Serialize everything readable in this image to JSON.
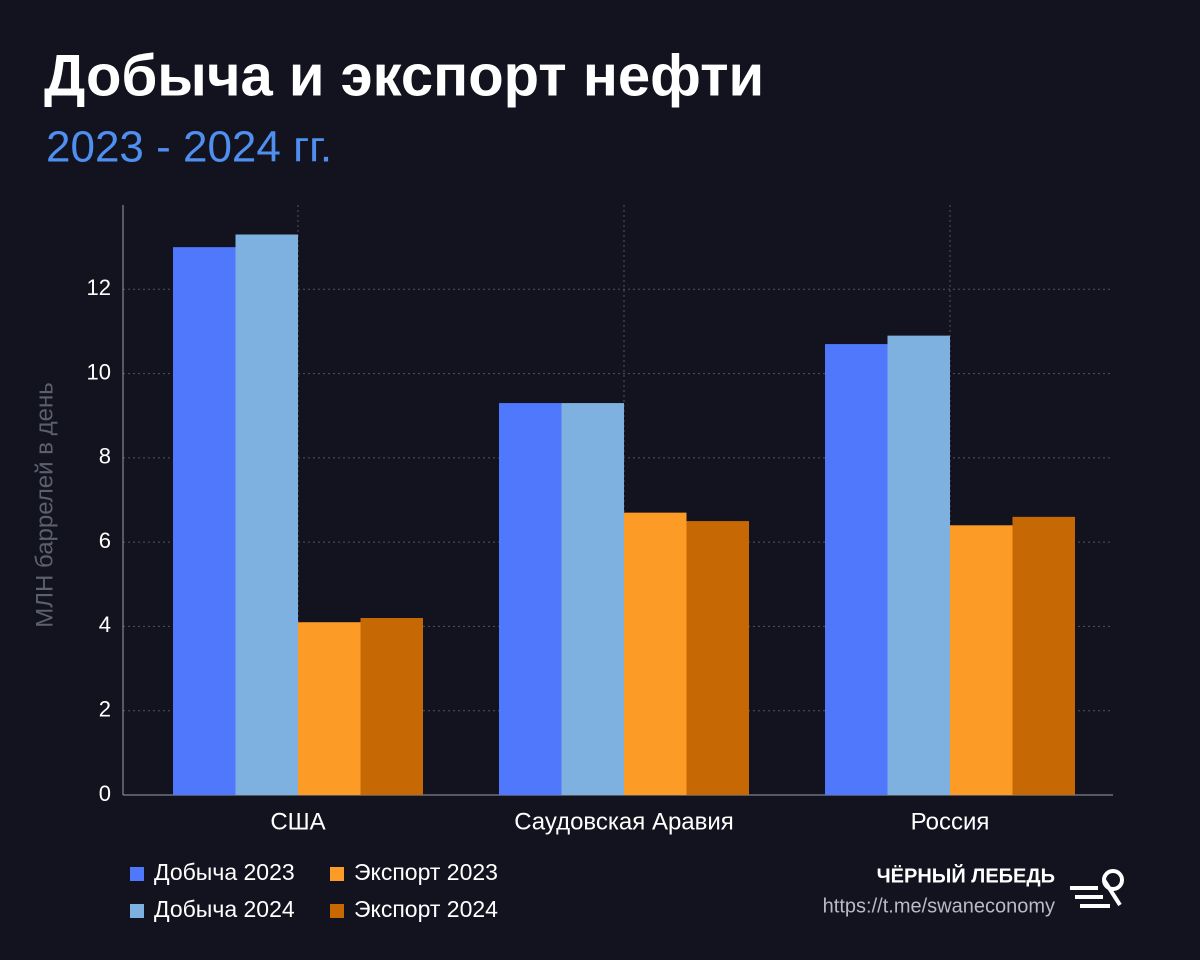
{
  "chart_data": {
    "type": "bar",
    "title": "Добыча и экспорт нефти",
    "subtitle": "2023 - 2024 гг.",
    "y_label": "МЛН баррелей в день",
    "categories": [
      "США",
      "Саудовская Аравия",
      "Россия"
    ],
    "series": [
      {
        "name": "Добыча 2023",
        "color": "#4f78fc",
        "values": [
          13.0,
          9.3,
          10.7
        ]
      },
      {
        "name": "Добыча 2024",
        "color": "#7fb1e0",
        "values": [
          13.3,
          9.3,
          10.9
        ]
      },
      {
        "name": "Экспорт 2023",
        "color": "#fc9b26",
        "values": [
          4.1,
          6.7,
          6.4
        ]
      },
      {
        "name": "Экспорт 2024",
        "color": "#c66904",
        "values": [
          4.2,
          6.5,
          6.6
        ]
      }
    ],
    "ylim": [
      0,
      14
    ],
    "yticks": [
      0,
      2,
      4,
      6,
      8,
      10,
      12
    ],
    "grid": true
  },
  "footer": {
    "brand": "ЧЁРНЫЙ ЛЕБЕДЬ",
    "url": "https://t.me/swaneconomy"
  }
}
